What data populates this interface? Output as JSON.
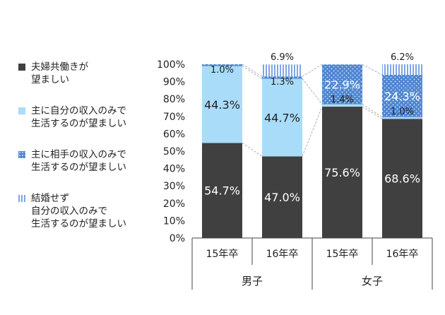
{
  "legend": [
    {
      "label": "夫婦共働きが\n望ましい",
      "swatch": "dark-fill"
    },
    {
      "label": "主に自分の収入のみで\n生活するのが望ましい",
      "swatch": "light-blue-fill"
    },
    {
      "label": "主に相手の収入のみで\n生活するのが望ましい",
      "swatch": "dotted-blue-fill"
    },
    {
      "label": "結婚せず\n自分の収入のみで\n生活するのが望ましい",
      "swatch": "striped-blue-fill"
    }
  ],
  "chart_data": {
    "type": "bar",
    "stacked": true,
    "categories": [
      "15年卒",
      "16年卒",
      "15年卒",
      "16年卒"
    ],
    "groups": [
      {
        "label": "男子",
        "categories": [
          0,
          1
        ]
      },
      {
        "label": "女子",
        "categories": [
          2,
          3
        ]
      }
    ],
    "series": [
      {
        "name": "夫婦共働きが望ましい",
        "color": "#404040",
        "pattern": "solid",
        "values": [
          54.7,
          47.0,
          75.6,
          68.6
        ],
        "labels": [
          "54.7%",
          "47.0%",
          "75.6%",
          "68.6%"
        ]
      },
      {
        "name": "主に自分の収入のみで生活するのが望ましい",
        "color": "#a9dcf8",
        "pattern": "solid",
        "values": [
          44.3,
          44.7,
          1.4,
          1.0
        ],
        "labels": [
          "44.3%",
          "44.7%",
          "1.4%",
          "1.0%"
        ]
      },
      {
        "name": "主に相手の収入のみで生活するのが望ましい",
        "color": "#4f86d0",
        "pattern": "dots",
        "values": [
          1.0,
          1.3,
          22.9,
          24.3
        ],
        "labels": [
          "1.0%",
          "1.3%",
          "22.9%",
          "24.3%"
        ]
      },
      {
        "name": "結婚せず自分の収入のみで生活するのが望ましい",
        "color": "#a4c1ee",
        "pattern": "stripes",
        "values": [
          0.0,
          6.9,
          0.0,
          6.2
        ],
        "labels": [
          "",
          "6.9%",
          "",
          "6.2%"
        ]
      }
    ],
    "y_ticks": [
      "0%",
      "10%",
      "20%",
      "30%",
      "40%",
      "50%",
      "60%",
      "70%",
      "80%",
      "90%",
      "100%"
    ],
    "ylim": [
      0,
      100
    ],
    "grid": false,
    "series_lines": true,
    "legend_position": "left"
  }
}
